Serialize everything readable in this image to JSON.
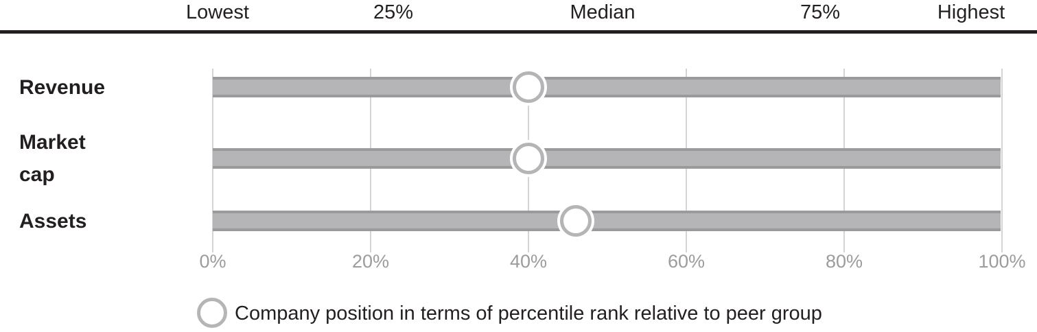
{
  "header": {
    "labels": [
      "Lowest",
      "25%",
      "Median",
      "75%",
      "Highest"
    ]
  },
  "rows": [
    {
      "label": "Revenue",
      "value_pct": 40
    },
    {
      "label": "Market cap",
      "value_pct": 40
    },
    {
      "label": "Assets",
      "value_pct": 46
    }
  ],
  "axis": {
    "ticks": [
      "0%",
      "20%",
      "40%",
      "60%",
      "80%",
      "100%"
    ]
  },
  "legend": {
    "text": "Company position in terms of percentile rank relative to peer group"
  },
  "colors": {
    "text_dark": "#231f20",
    "bar_fill": "#b5b5b8",
    "bar_border": "#9a9a9d",
    "gridline": "#d4d4d4",
    "tick_label": "#9c9c9c",
    "marker_ring": "#b5b5b8",
    "marker_fill": "#ffffff"
  },
  "chart_data": {
    "type": "scatter",
    "subtype": "percentile-dot-plot",
    "categories": [
      "Revenue",
      "Market cap",
      "Assets"
    ],
    "values": [
      40,
      40,
      46
    ],
    "title": "",
    "xlabel": "",
    "ylabel": "",
    "xlim": [
      0,
      100
    ],
    "x_ticks": [
      0,
      20,
      40,
      60,
      80,
      100
    ],
    "x_tick_labels": [
      "0%",
      "20%",
      "40%",
      "60%",
      "80%",
      "100%"
    ],
    "scale_header_labels": [
      "Lowest",
      "25%",
      "Median",
      "75%",
      "Highest"
    ],
    "grid": "vertical-on",
    "legend_position": "bottom",
    "legend_label": "Company position in terms of percentile rank relative to peer group"
  }
}
